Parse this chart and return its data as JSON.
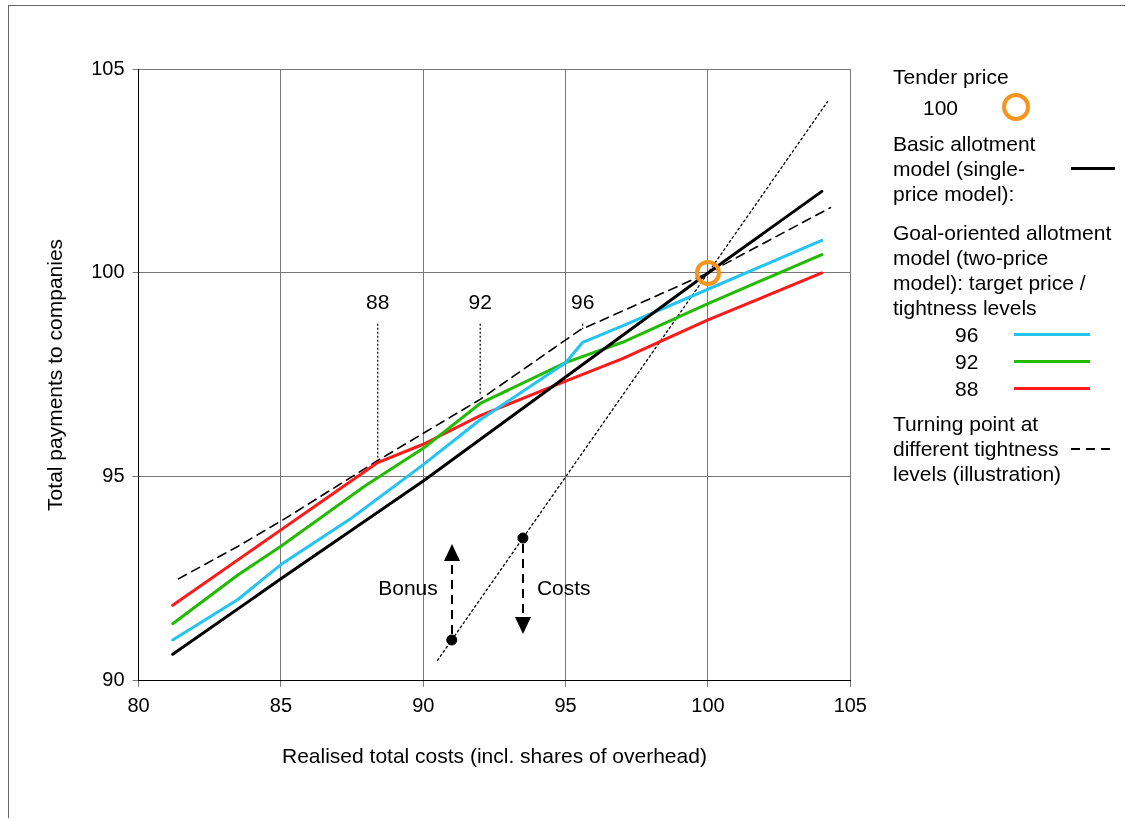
{
  "chart_data": {
    "type": "line",
    "xlabel": "Realised total costs (incl. shares of overhead)",
    "ylabel": "Total payments to companies",
    "legend_title": "Tender price",
    "legend": "right",
    "grid": true,
    "xlim": [
      80,
      105
    ],
    "xticks": [
      80,
      85,
      90,
      95,
      100,
      105
    ],
    "ylim": [
      90,
      105
    ],
    "yticks": [
      90,
      95,
      100,
      105
    ],
    "series": [
      {
        "name": "100",
        "type": "scatter",
        "marker": "circle",
        "color": "#f7941d",
        "x": [
          100
        ],
        "values": [
          100
        ]
      },
      {
        "name": "Basic allotment model (single-price model):",
        "line_style": "solid",
        "color": "#000000",
        "x": [
          81.2,
          85,
          90,
          95,
          100,
          104
        ],
        "values": [
          90.65,
          92.5,
          94.9,
          97.45,
          100,
          102
        ]
      },
      {
        "name": "96",
        "line_style": "solid",
        "color": "#22c4f4",
        "x": [
          81.2,
          83.5,
          85,
          87.5,
          90,
          92,
          95,
          95.6,
          97,
          100,
          104
        ],
        "values": [
          91.0,
          92.0,
          92.85,
          94.0,
          95.3,
          96.4,
          97.8,
          98.3,
          98.7,
          99.6,
          100.8
        ]
      },
      {
        "name": "92",
        "line_style": "solid",
        "color": "#22bb00",
        "x": [
          81.2,
          83.5,
          85,
          88,
          90,
          92,
          95,
          97,
          100,
          102,
          104
        ],
        "values": [
          91.4,
          92.6,
          93.3,
          94.8,
          95.7,
          96.8,
          97.8,
          98.3,
          99.25,
          99.85,
          100.45
        ]
      },
      {
        "name": "88",
        "line_style": "solid",
        "color": "#ff1a1a",
        "x": [
          81.2,
          85,
          88.4,
          90,
          92,
          95,
          97,
          100,
          104
        ],
        "values": [
          91.85,
          93.7,
          95.35,
          95.8,
          96.5,
          97.35,
          97.9,
          98.85,
          100
        ]
      },
      {
        "name": "Turning point at different tightness levels (illustration)",
        "line_style": "dashed",
        "color": "#000000",
        "x": [
          81.4,
          83.5,
          85.2,
          88.4,
          92,
          95.5,
          100,
          104.3
        ],
        "values": [
          92.5,
          93.3,
          94.0,
          95.4,
          96.9,
          98.6,
          100,
          101.6
        ]
      },
      {
        "line_style": "dotted",
        "color": "#000000",
        "x": [
          90.5,
          104.2
        ],
        "values": [
          90.5,
          104.2
        ]
      },
      {
        "type": "scatter",
        "marker": "circle",
        "color": "#000000",
        "x": [
          91,
          93.5
        ],
        "values": [
          91,
          93.5
        ]
      }
    ],
    "annotations": [
      {
        "text": "88",
        "x": 88.4,
        "y": 95.4
      },
      {
        "text": "92",
        "x": 92,
        "y": 96.9
      },
      {
        "text": "96",
        "x": 95.6,
        "y": 98.55
      },
      {
        "text": "Bonus",
        "x": 91,
        "y": 91
      },
      {
        "text": "Costs",
        "x": 93.5,
        "y": 93.5
      },
      "Goal-oriented allotment model (two-price model): target price / tightness levels"
    ]
  }
}
